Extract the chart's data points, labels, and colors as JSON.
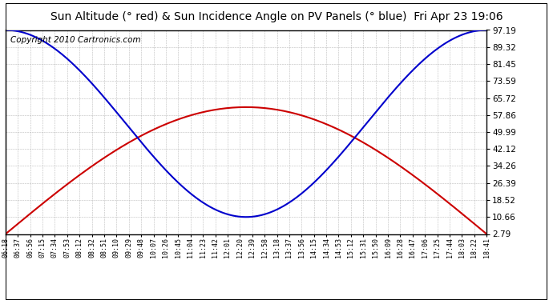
{
  "title": "Sun Altitude (° red) & Sun Incidence Angle on PV Panels (° blue)  Fri Apr 23 19:06",
  "copyright": "Copyright 2010 Cartronics.com",
  "x_labels": [
    "06:18",
    "06:37",
    "06:56",
    "07:15",
    "07:34",
    "07:53",
    "08:12",
    "08:32",
    "08:51",
    "09:10",
    "09:29",
    "09:48",
    "10:07",
    "10:26",
    "10:45",
    "11:04",
    "11:23",
    "11:42",
    "12:01",
    "12:20",
    "12:39",
    "12:58",
    "13:18",
    "13:37",
    "13:56",
    "14:15",
    "14:34",
    "14:53",
    "15:12",
    "15:31",
    "15:50",
    "16:09",
    "16:28",
    "16:47",
    "17:06",
    "17:25",
    "17:44",
    "18:03",
    "18:22",
    "18:41"
  ],
  "y_ticks": [
    2.79,
    10.66,
    18.52,
    26.39,
    34.26,
    42.12,
    49.99,
    57.86,
    65.72,
    73.59,
    81.45,
    89.32,
    97.19
  ],
  "ymin": 2.79,
  "ymax": 97.19,
  "red_color": "#cc0000",
  "blue_color": "#0000cc",
  "bg_color": "#ffffff",
  "grid_color": "#aaaaaa",
  "title_fontsize": 10,
  "copyright_fontsize": 7.5,
  "red_peak": 61.5,
  "red_peak_index": 20.5,
  "blue_min": 10.66,
  "blue_min_index": 20.5,
  "n_labels": 40
}
